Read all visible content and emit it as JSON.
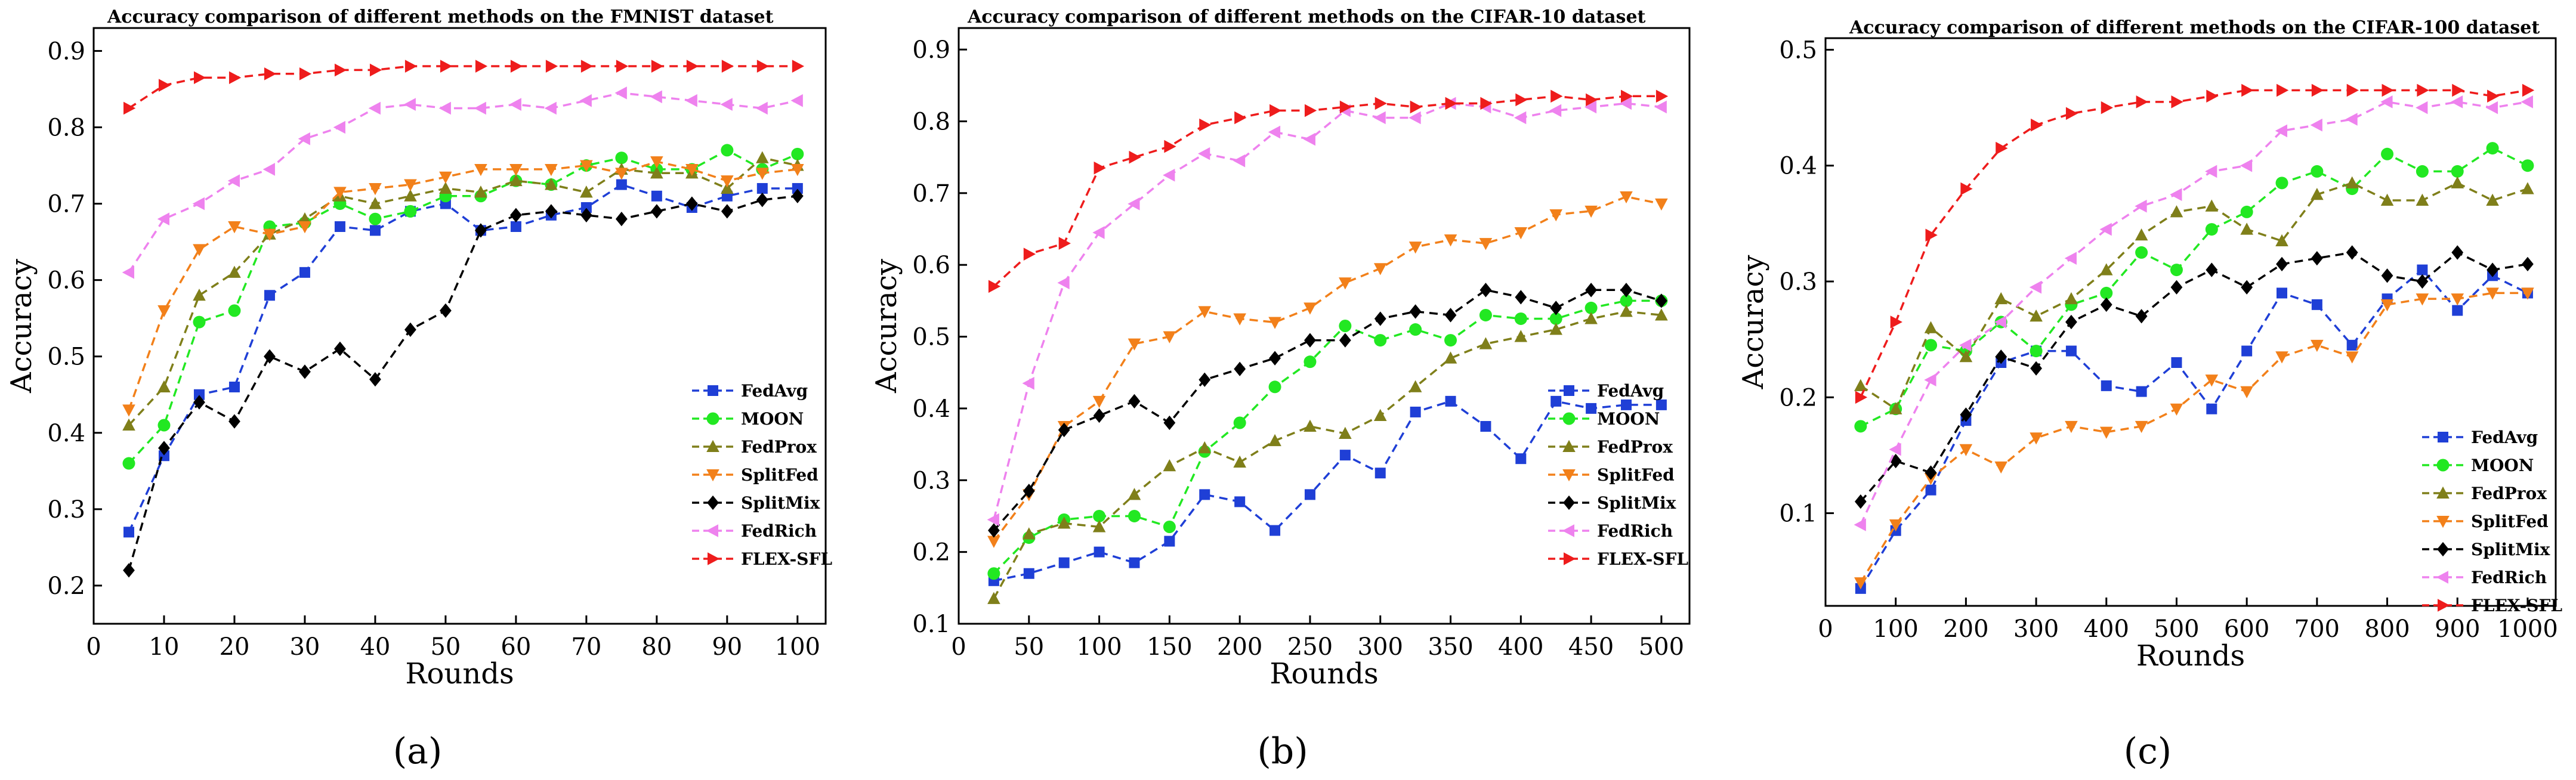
{
  "figure": {
    "panel_labels": [
      "(a)",
      "(b)",
      "(c)"
    ]
  },
  "chart_data": [
    {
      "type": "line",
      "title": "Accuracy comparison of different methods on the FMNIST dataset",
      "xlabel": "Rounds",
      "ylabel": "Accuracy",
      "xlim": [
        0,
        104
      ],
      "ylim": [
        0.15,
        0.93
      ],
      "xticks": [
        0,
        10,
        20,
        30,
        40,
        50,
        60,
        70,
        80,
        90,
        100
      ],
      "yticks": [
        0.2,
        0.3,
        0.4,
        0.5,
        0.6,
        0.7,
        0.8,
        0.9
      ],
      "ytick_labels": [
        "0.2",
        "0.3",
        "0.4",
        "0.5",
        "0.6",
        "0.7",
        "0.8",
        "0.9"
      ],
      "x": [
        5,
        10,
        15,
        20,
        25,
        30,
        35,
        40,
        45,
        50,
        55,
        60,
        65,
        70,
        75,
        80,
        85,
        90,
        95,
        100
      ],
      "legend_position": "bottom-right",
      "series": [
        {
          "name": "FedAvg",
          "color": "#1f3fd6",
          "marker": "square",
          "values": [
            0.27,
            0.37,
            0.45,
            0.46,
            0.58,
            0.61,
            0.67,
            0.665,
            0.69,
            0.7,
            0.665,
            0.67,
            0.685,
            0.695,
            0.725,
            0.71,
            0.695,
            0.71,
            0.72,
            0.72
          ]
        },
        {
          "name": "MOON",
          "color": "#22e822",
          "marker": "circle",
          "values": [
            0.36,
            0.41,
            0.545,
            0.56,
            0.67,
            0.675,
            0.7,
            0.68,
            0.69,
            0.71,
            0.71,
            0.73,
            0.725,
            0.75,
            0.76,
            0.745,
            0.745,
            0.77,
            0.745,
            0.765
          ]
        },
        {
          "name": "FedProx",
          "color": "#7f7f1a",
          "marker": "triangle-up",
          "values": [
            0.41,
            0.46,
            0.58,
            0.61,
            0.66,
            0.68,
            0.71,
            0.7,
            0.71,
            0.72,
            0.715,
            0.73,
            0.725,
            0.715,
            0.745,
            0.74,
            0.74,
            0.72,
            0.76,
            0.75
          ]
        },
        {
          "name": "SplitFed",
          "color": "#f2801a",
          "marker": "triangle-down",
          "values": [
            0.43,
            0.56,
            0.64,
            0.67,
            0.66,
            0.67,
            0.715,
            0.72,
            0.725,
            0.735,
            0.745,
            0.745,
            0.745,
            0.75,
            0.74,
            0.755,
            0.745,
            0.73,
            0.74,
            0.745
          ]
        },
        {
          "name": "SplitMix",
          "color": "#000000",
          "marker": "diamond",
          "values": [
            0.22,
            0.38,
            0.44,
            0.415,
            0.5,
            0.48,
            0.51,
            0.47,
            0.535,
            0.56,
            0.665,
            0.685,
            0.69,
            0.685,
            0.68,
            0.69,
            0.7,
            0.69,
            0.705,
            0.71
          ]
        },
        {
          "name": "FedRich",
          "color": "#ee82ee",
          "marker": "triangle-left",
          "values": [
            0.61,
            0.68,
            0.7,
            0.73,
            0.745,
            0.785,
            0.8,
            0.825,
            0.83,
            0.825,
            0.825,
            0.83,
            0.825,
            0.835,
            0.845,
            0.84,
            0.835,
            0.83,
            0.825,
            0.835
          ]
        },
        {
          "name": "FLEX-SFL",
          "color": "#ee1c1c",
          "marker": "triangle-right",
          "values": [
            0.825,
            0.855,
            0.865,
            0.865,
            0.87,
            0.87,
            0.875,
            0.875,
            0.88,
            0.88,
            0.88,
            0.88,
            0.88,
            0.88,
            0.88,
            0.88,
            0.88,
            0.88,
            0.88,
            0.88
          ]
        }
      ]
    },
    {
      "type": "line",
      "title": "Accuracy comparison of different methods on the CIFAR-10 dataset",
      "xlabel": "Rounds",
      "ylabel": "Accuracy",
      "xlim": [
        0,
        520
      ],
      "ylim": [
        0.1,
        0.93
      ],
      "xticks": [
        0,
        50,
        100,
        150,
        200,
        250,
        300,
        350,
        400,
        450,
        500
      ],
      "yticks": [
        0.1,
        0.2,
        0.3,
        0.4,
        0.5,
        0.6,
        0.7,
        0.8,
        0.9
      ],
      "ytick_labels": [
        "0.1",
        "0.2",
        "0.3",
        "0.4",
        "0.5",
        "0.6",
        "0.7",
        "0.8",
        "0.9"
      ],
      "x": [
        25,
        50,
        75,
        100,
        125,
        150,
        175,
        200,
        225,
        250,
        275,
        300,
        325,
        350,
        375,
        400,
        425,
        450,
        475,
        500
      ],
      "legend_position": "bottom-right",
      "series": [
        {
          "name": "FedAvg",
          "color": "#1f3fd6",
          "marker": "square",
          "values": [
            0.16,
            0.17,
            0.185,
            0.2,
            0.185,
            0.215,
            0.28,
            0.27,
            0.23,
            0.28,
            0.335,
            0.31,
            0.395,
            0.41,
            0.375,
            0.33,
            0.41,
            0.4,
            0.405,
            0.405
          ]
        },
        {
          "name": "MOON",
          "color": "#22e822",
          "marker": "circle",
          "values": [
            0.17,
            0.22,
            0.245,
            0.25,
            0.25,
            0.235,
            0.34,
            0.38,
            0.43,
            0.465,
            0.515,
            0.495,
            0.51,
            0.495,
            0.53,
            0.525,
            0.525,
            0.54,
            0.55,
            0.55
          ]
        },
        {
          "name": "FedProx",
          "color": "#7f7f1a",
          "marker": "triangle-up",
          "values": [
            0.135,
            0.225,
            0.24,
            0.235,
            0.28,
            0.32,
            0.345,
            0.325,
            0.355,
            0.375,
            0.365,
            0.39,
            0.43,
            0.47,
            0.49,
            0.5,
            0.51,
            0.525,
            0.535,
            0.53
          ]
        },
        {
          "name": "SplitFed",
          "color": "#f2801a",
          "marker": "triangle-down",
          "values": [
            0.215,
            0.28,
            0.375,
            0.41,
            0.49,
            0.5,
            0.535,
            0.525,
            0.52,
            0.54,
            0.575,
            0.595,
            0.625,
            0.635,
            0.63,
            0.645,
            0.67,
            0.675,
            0.695,
            0.685
          ]
        },
        {
          "name": "SplitMix",
          "color": "#000000",
          "marker": "diamond",
          "values": [
            0.23,
            0.285,
            0.37,
            0.39,
            0.41,
            0.38,
            0.44,
            0.455,
            0.47,
            0.495,
            0.495,
            0.525,
            0.535,
            0.53,
            0.565,
            0.555,
            0.54,
            0.565,
            0.565,
            0.55
          ]
        },
        {
          "name": "FedRich",
          "color": "#ee82ee",
          "marker": "triangle-left",
          "values": [
            0.245,
            0.435,
            0.575,
            0.645,
            0.685,
            0.725,
            0.755,
            0.745,
            0.785,
            0.775,
            0.815,
            0.805,
            0.805,
            0.825,
            0.82,
            0.805,
            0.815,
            0.82,
            0.825,
            0.82
          ]
        },
        {
          "name": "FLEX-SFL",
          "color": "#ee1c1c",
          "marker": "triangle-right",
          "values": [
            0.57,
            0.615,
            0.63,
            0.735,
            0.75,
            0.765,
            0.795,
            0.805,
            0.815,
            0.815,
            0.82,
            0.825,
            0.82,
            0.825,
            0.825,
            0.83,
            0.835,
            0.83,
            0.835,
            0.835
          ]
        }
      ]
    },
    {
      "type": "line",
      "title": "Accuracy comparison of different methods on the CIFAR-100 dataset",
      "xlabel": "Rounds",
      "ylabel": "Accuracy",
      "xlim": [
        0,
        1040
      ],
      "ylim": [
        0.02,
        0.51
      ],
      "xticks": [
        0,
        100,
        200,
        300,
        400,
        500,
        600,
        700,
        800,
        900,
        1000
      ],
      "yticks": [
        0.1,
        0.2,
        0.3,
        0.4,
        0.5
      ],
      "ytick_labels": [
        "0.1",
        "0.2",
        "0.3",
        "0.4",
        "0.5"
      ],
      "x": [
        50,
        100,
        150,
        200,
        250,
        300,
        350,
        400,
        450,
        500,
        550,
        600,
        650,
        700,
        750,
        800,
        850,
        900,
        950,
        1000
      ],
      "legend_position": "bottom-right",
      "series": [
        {
          "name": "FedAvg",
          "color": "#1f3fd6",
          "marker": "square",
          "values": [
            0.035,
            0.085,
            0.12,
            0.18,
            0.23,
            0.24,
            0.24,
            0.21,
            0.205,
            0.23,
            0.19,
            0.24,
            0.29,
            0.28,
            0.245,
            0.285,
            0.31,
            0.275,
            0.305,
            0.29
          ]
        },
        {
          "name": "MOON",
          "color": "#22e822",
          "marker": "circle",
          "values": [
            0.175,
            0.19,
            0.245,
            0.24,
            0.265,
            0.24,
            0.28,
            0.29,
            0.325,
            0.31,
            0.345,
            0.36,
            0.385,
            0.395,
            0.38,
            0.41,
            0.395,
            0.395,
            0.415,
            0.4
          ]
        },
        {
          "name": "FedProx",
          "color": "#7f7f1a",
          "marker": "triangle-up",
          "values": [
            0.21,
            0.19,
            0.26,
            0.235,
            0.285,
            0.27,
            0.285,
            0.31,
            0.34,
            0.36,
            0.365,
            0.345,
            0.335,
            0.375,
            0.385,
            0.37,
            0.37,
            0.385,
            0.37,
            0.38
          ]
        },
        {
          "name": "SplitFed",
          "color": "#f2801a",
          "marker": "triangle-down",
          "values": [
            0.04,
            0.09,
            0.13,
            0.155,
            0.14,
            0.165,
            0.175,
            0.17,
            0.175,
            0.19,
            0.215,
            0.205,
            0.235,
            0.245,
            0.235,
            0.28,
            0.285,
            0.285,
            0.29,
            0.29
          ]
        },
        {
          "name": "SplitMix",
          "color": "#000000",
          "marker": "diamond",
          "values": [
            0.11,
            0.145,
            0.135,
            0.185,
            0.235,
            0.225,
            0.265,
            0.28,
            0.27,
            0.295,
            0.31,
            0.295,
            0.315,
            0.32,
            0.325,
            0.305,
            0.3,
            0.325,
            0.31,
            0.315
          ]
        },
        {
          "name": "FedRich",
          "color": "#ee82ee",
          "marker": "triangle-left",
          "values": [
            0.09,
            0.155,
            0.215,
            0.245,
            0.265,
            0.295,
            0.32,
            0.345,
            0.365,
            0.375,
            0.395,
            0.4,
            0.43,
            0.435,
            0.44,
            0.455,
            0.45,
            0.455,
            0.45,
            0.455
          ]
        },
        {
          "name": "FLEX-SFL",
          "color": "#ee1c1c",
          "marker": "triangle-right",
          "values": [
            0.2,
            0.265,
            0.34,
            0.38,
            0.415,
            0.435,
            0.445,
            0.45,
            0.455,
            0.455,
            0.46,
            0.465,
            0.465,
            0.465,
            0.465,
            0.465,
            0.465,
            0.465,
            0.46,
            0.465
          ]
        }
      ]
    }
  ]
}
